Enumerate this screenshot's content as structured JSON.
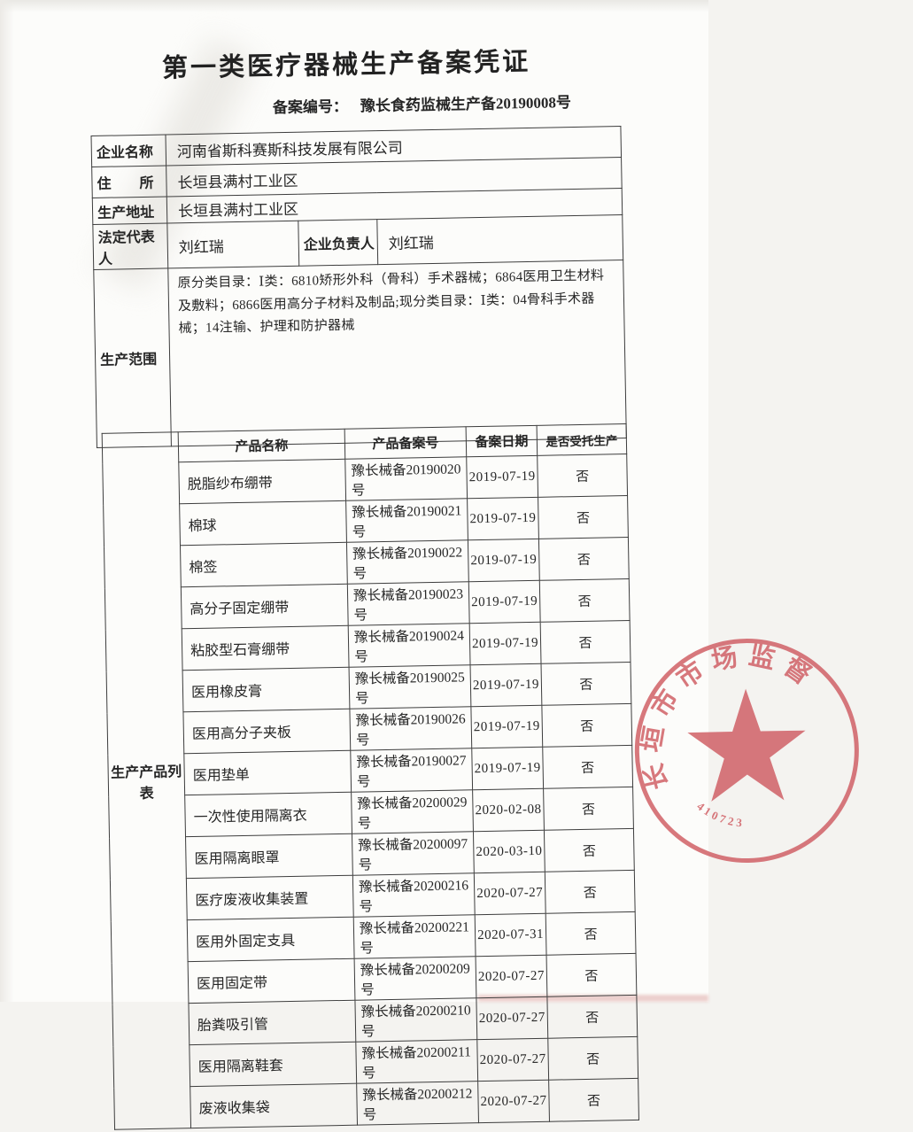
{
  "page": {
    "title": "第一类医疗器械生产备案凭证"
  },
  "filing": {
    "label": "备案编号：",
    "number": "豫长食药监械生产备20190008号"
  },
  "info_table": {
    "rows": [
      {
        "label": "企业名称",
        "value": "河南省斯科赛斯科技发展有限公司"
      },
      {
        "label": "住　　所",
        "value": "长垣县满村工业区"
      },
      {
        "label": "生产地址",
        "value": "长垣县满村工业区"
      },
      {
        "label": "法定代表人",
        "value": "刘红瑞",
        "label2": "企业负责人",
        "value2": "刘红瑞"
      },
      {
        "label": "生产范围",
        "value": "原分类目录：Ⅰ类：6810矫形外科（骨科）手术器械；6864医用卫生材料及敷料；6866医用高分子材料及制品;现分类目录：Ⅰ类：04骨科手术器械；14注输、护理和防护器械"
      }
    ]
  },
  "product_table": {
    "side_label": "生产产品列表",
    "headers": [
      "产品名称",
      "产品备案号",
      "备案日期",
      "是否受托生产"
    ],
    "rows": [
      [
        "脱脂纱布绷带",
        "豫长械备20190020号",
        "2019-07-19",
        "否"
      ],
      [
        "棉球",
        "豫长械备20190021号",
        "2019-07-19",
        "否"
      ],
      [
        "棉签",
        "豫长械备20190022号",
        "2019-07-19",
        "否"
      ],
      [
        "高分子固定绷带",
        "豫长械备20190023号",
        "2019-07-19",
        "否"
      ],
      [
        "粘胶型石膏绷带",
        "豫长械备20190024号",
        "2019-07-19",
        "否"
      ],
      [
        "医用橡皮膏",
        "豫长械备20190025号",
        "2019-07-19",
        "否"
      ],
      [
        "医用高分子夹板",
        "豫长械备20190026号",
        "2019-07-19",
        "否"
      ],
      [
        "医用垫单",
        "豫长械备20190027号",
        "2019-07-19",
        "否"
      ],
      [
        "一次性使用隔离衣",
        "豫长械备20200029号",
        "2020-02-08",
        "否"
      ],
      [
        "医用隔离眼罩",
        "豫长械备20200097号",
        "2020-03-10",
        "否"
      ],
      [
        "医疗废液收集装置",
        "豫长械备20200216号",
        "2020-07-27",
        "否"
      ],
      [
        "医用外固定支具",
        "豫长械备20200221号",
        "2020-07-31",
        "否"
      ],
      [
        "医用固定带",
        "豫长械备20200209号",
        "2020-07-27",
        "否"
      ],
      [
        "胎粪吸引管",
        "豫长械备20200210号",
        "2020-07-27",
        "否"
      ],
      [
        "医用隔离鞋套",
        "豫长械备20200211号",
        "2020-07-27",
        "否"
      ],
      [
        "废液收集袋",
        "豫长械备20200212号",
        "2020-07-27",
        "否"
      ]
    ]
  },
  "stamp": {
    "text_visible": "长垣市市场监督",
    "serial": "410723",
    "color": "#cf5a60"
  }
}
